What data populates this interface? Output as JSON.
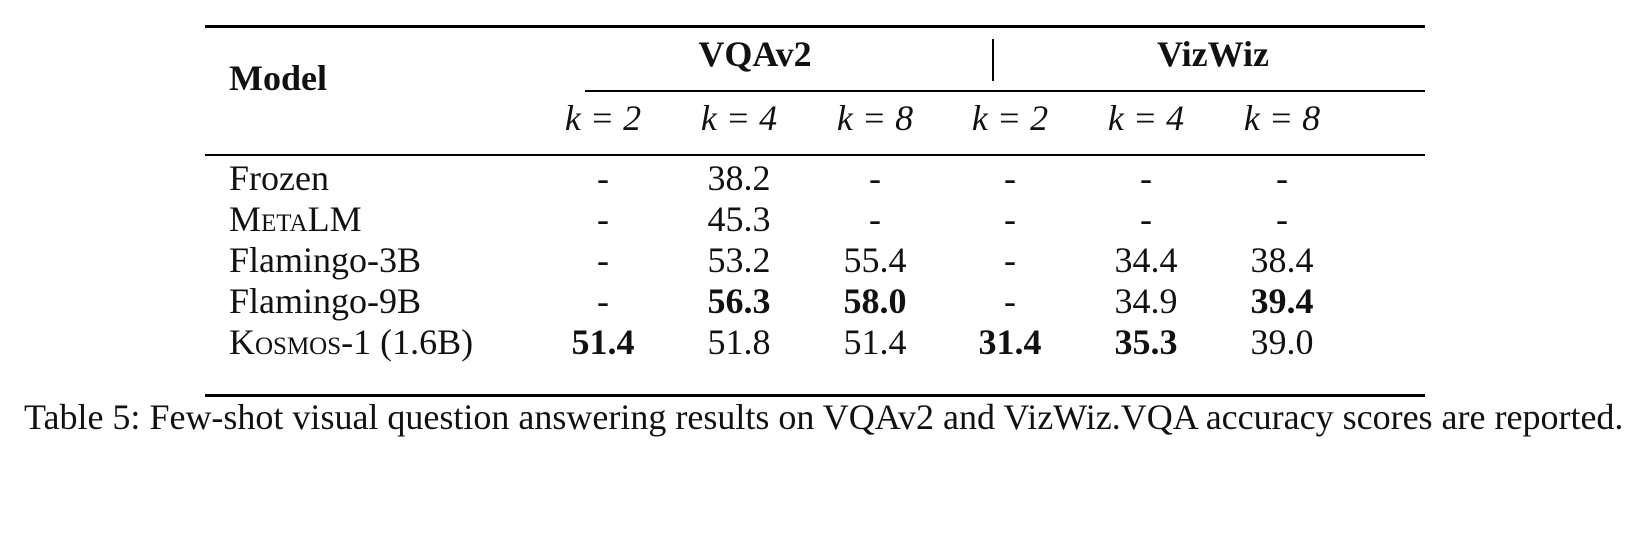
{
  "table": {
    "model_header": "Model",
    "groups": [
      {
        "label": "VQAv2"
      },
      {
        "label": "VizWiz"
      }
    ],
    "k_headers": [
      "k = 2",
      "k = 4",
      "k = 8",
      "k = 2",
      "k = 4",
      "k = 8"
    ],
    "rows": [
      {
        "model": "Frozen",
        "values": [
          "-",
          "38.2",
          "-",
          "-",
          "-",
          "-"
        ],
        "bold": [
          false,
          false,
          false,
          false,
          false,
          false
        ]
      },
      {
        "model": "MetaLM",
        "values": [
          "-",
          "45.3",
          "-",
          "-",
          "-",
          "-"
        ],
        "bold": [
          false,
          false,
          false,
          false,
          false,
          false
        ]
      },
      {
        "model": "Flamingo-3B",
        "values": [
          "-",
          "53.2",
          "55.4",
          "-",
          "34.4",
          "38.4"
        ],
        "bold": [
          false,
          false,
          false,
          false,
          false,
          false
        ]
      },
      {
        "model": "Flamingo-9B",
        "values": [
          "-",
          "56.3",
          "58.0",
          "-",
          "34.9",
          "39.4"
        ],
        "bold": [
          false,
          true,
          true,
          false,
          false,
          true
        ]
      },
      {
        "model": "Kosmos-1 (1.6B)",
        "values": [
          "51.4",
          "51.8",
          "51.4",
          "31.4",
          "35.3",
          "39.0"
        ],
        "bold": [
          true,
          false,
          false,
          true,
          true,
          false
        ]
      }
    ]
  },
  "caption": "Table 5: Few-shot visual question answering results on VQAv2 and VizWiz.VQA accuracy scores are reported."
}
